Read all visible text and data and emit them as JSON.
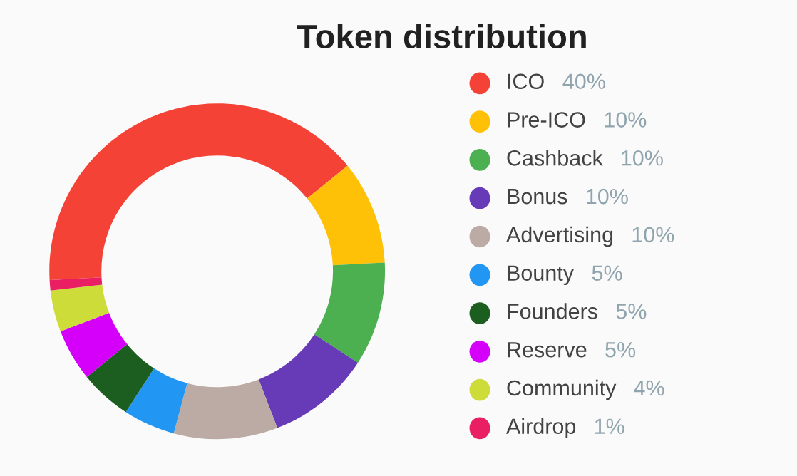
{
  "chart_data": {
    "type": "donut",
    "title": "Token distribution",
    "categories": [
      "ICO",
      "Pre-ICO",
      "Cashback",
      "Bonus",
      "Advertising",
      "Bounty",
      "Founders",
      "Reserve",
      "Community",
      "Airdrop"
    ],
    "values": [
      40,
      10,
      10,
      10,
      10,
      5,
      5,
      5,
      4,
      1
    ],
    "colors": [
      "#f44336",
      "#ffc107",
      "#4caf50",
      "#673ab7",
      "#bcaaa4",
      "#2196f3",
      "#1b5e20",
      "#d500f9",
      "#cddc39",
      "#e91e63"
    ],
    "value_labels": [
      "40%",
      "10%",
      "10%",
      "10%",
      "10%",
      "5%",
      "5%",
      "5%",
      "4%",
      "1%"
    ],
    "legend": "right"
  }
}
